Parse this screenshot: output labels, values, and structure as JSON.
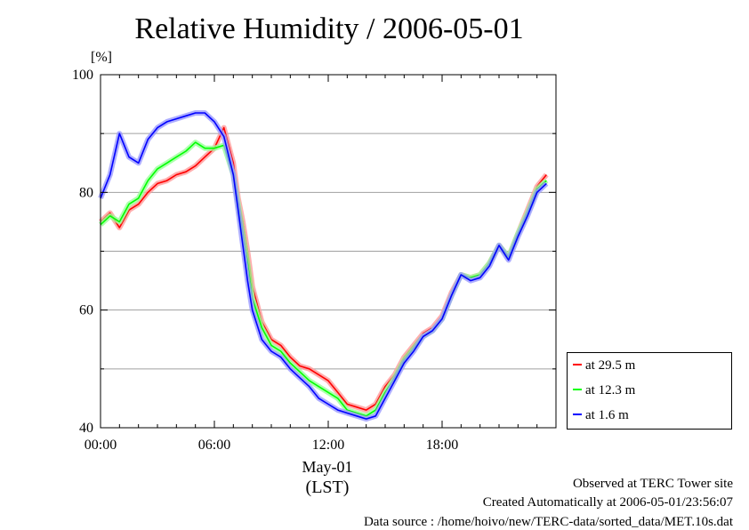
{
  "title": "Relative Humidity / 2006-05-01",
  "y_unit": "[%]",
  "x_date_label": "May-01",
  "x_timezone_label": "(LST)",
  "footer": {
    "line1": "Observed at TERC Tower site",
    "line2": "Created Automatically at 2006-05-01/23:56:07",
    "line3": "Data source : /home/hoivo/new/TERC-data/sorted_data/MET.10s.dat"
  },
  "colors": {
    "s29": "#ff0000",
    "s12": "#00ff00",
    "s1": "#0000ff"
  },
  "chart_data": {
    "type": "line",
    "title": "Relative Humidity / 2006-05-01",
    "ylabel": "[%]",
    "xlabel": "(LST)",
    "xlim": [
      0,
      24
    ],
    "ylim": [
      40,
      100
    ],
    "x_ticks": [
      "00:00",
      "06:00",
      "12:00",
      "18:00"
    ],
    "y_ticks": [
      "40",
      "60",
      "80",
      "100"
    ],
    "grid": true,
    "legend_position": "bottom-right-outside",
    "x": [
      0,
      0.5,
      1,
      1.5,
      2,
      2.5,
      3,
      3.5,
      4,
      4.5,
      5,
      5.5,
      6,
      6.5,
      7,
      7.25,
      7.5,
      7.75,
      8,
      8.5,
      9,
      9.5,
      10,
      10.5,
      11,
      11.5,
      12,
      12.5,
      13,
      13.5,
      14,
      14.5,
      15,
      15.5,
      16,
      16.5,
      17,
      17.5,
      18,
      18.5,
      19,
      19.5,
      20,
      20.5,
      21,
      21.5,
      22,
      22.5,
      23,
      23.5
    ],
    "series": [
      {
        "name": "at 29.5 m",
        "color": "#ff0000",
        "values": [
          75,
          76.5,
          74,
          77,
          78,
          80,
          81.5,
          82,
          83,
          83.5,
          84.5,
          86,
          87.5,
          91,
          85,
          79,
          75,
          70,
          64,
          58,
          55,
          54,
          52,
          50.5,
          50,
          49,
          48,
          46,
          44,
          43.5,
          43,
          44,
          47,
          49,
          52,
          54,
          56,
          57,
          59,
          63,
          66,
          65.5,
          66,
          68,
          71,
          69,
          73,
          77,
          81,
          83
        ]
      },
      {
        "name": "at 12.3 m",
        "color": "#00ff00",
        "values": [
          74.5,
          76,
          75,
          78,
          79,
          82,
          84,
          85,
          86,
          87,
          88.5,
          87.5,
          87.5,
          88,
          83,
          78,
          73,
          68,
          62,
          57,
          54,
          53,
          51,
          49.5,
          48,
          47,
          46,
          45,
          43,
          42.5,
          42,
          43,
          46,
          48.5,
          51.5,
          53.5,
          55.5,
          56.5,
          58.5,
          62.5,
          66,
          65.5,
          66,
          68,
          71,
          69,
          73,
          76.5,
          80.5,
          82
        ]
      },
      {
        "name": "at 1.6 m",
        "color": "#0000ff",
        "values": [
          79,
          83,
          90,
          86,
          85,
          89,
          91,
          92,
          92.5,
          93,
          93.5,
          93.5,
          92,
          89.5,
          83,
          77,
          71,
          65,
          60,
          55,
          53,
          52,
          50,
          48.5,
          47,
          45,
          44,
          43,
          42.5,
          42,
          41.5,
          42,
          45,
          48,
          51,
          53,
          55.5,
          56.5,
          58.5,
          62.5,
          66,
          65,
          65.5,
          67.5,
          71,
          68.5,
          72.5,
          76,
          80,
          81.5
        ]
      }
    ]
  }
}
